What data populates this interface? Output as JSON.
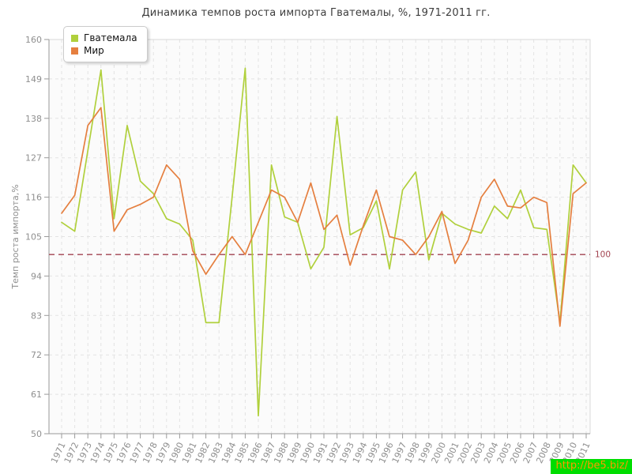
{
  "page": {
    "title": "Динамика темпов роста импорта Гватемалы, %, 1971-2011 гг.",
    "watermark": "http://be5.biz/",
    "watermark_bg": "#00dd00",
    "watermark_color": "#ff9900"
  },
  "chart_data": {
    "type": "line",
    "title": "Динамика темпов роста импорта Гватемалы, %, 1971-2011 гг.",
    "xlabel": "",
    "ylabel": "Темп роста импорта,%",
    "ylim": [
      50,
      160
    ],
    "yticks": [
      50,
      61,
      72,
      83,
      94,
      105,
      116,
      127,
      138,
      149,
      160
    ],
    "grid": true,
    "legend_position": "top-left",
    "reference_line": {
      "value": 100,
      "label": "100",
      "color": "#a24350"
    },
    "categories": [
      1971,
      1972,
      1973,
      1974,
      1975,
      1976,
      1977,
      1978,
      1979,
      1980,
      1981,
      1982,
      1983,
      1984,
      1985,
      1986,
      1987,
      1988,
      1989,
      1990,
      1991,
      1992,
      1993,
      1994,
      1995,
      1996,
      1997,
      1998,
      1999,
      2000,
      2001,
      2002,
      2003,
      2004,
      2005,
      2006,
      2007,
      2008,
      2009,
      2010,
      2011
    ],
    "series": [
      {
        "id": "guatemala",
        "name": "Гватемала",
        "color": "#b0d03c",
        "values": [
          109,
          106.5,
          129,
          151.5,
          110,
          136,
          120.5,
          117,
          110,
          108.5,
          104,
          81,
          81,
          116,
          152,
          55,
          125,
          110.5,
          109,
          96,
          102,
          138.5,
          105.5,
          107.5,
          115,
          96,
          118,
          123,
          98.5,
          111.5,
          108.5,
          107,
          106,
          113.5,
          110,
          118,
          107.5,
          107,
          81,
          125,
          120
        ]
      },
      {
        "id": "mir",
        "name": "Мир",
        "color": "#e57f3f",
        "values": [
          111.5,
          116.5,
          136,
          141,
          106.5,
          112.5,
          114,
          116,
          125,
          121,
          101,
          94.5,
          100,
          105,
          100,
          109,
          118,
          116,
          109,
          120,
          107,
          111,
          97,
          108,
          118,
          105,
          104,
          100,
          105,
          112,
          97.5,
          104,
          116,
          121,
          113.5,
          113,
          116,
          114.5,
          80,
          117,
          120
        ]
      }
    ],
    "style": {
      "plot_bg": "#fbfbfb",
      "grid_color": "#e3e3e3",
      "border_color": "#d9d9d9",
      "axis_color": "#9a9a9a",
      "tick_label_color": "#8f8f8f"
    }
  }
}
